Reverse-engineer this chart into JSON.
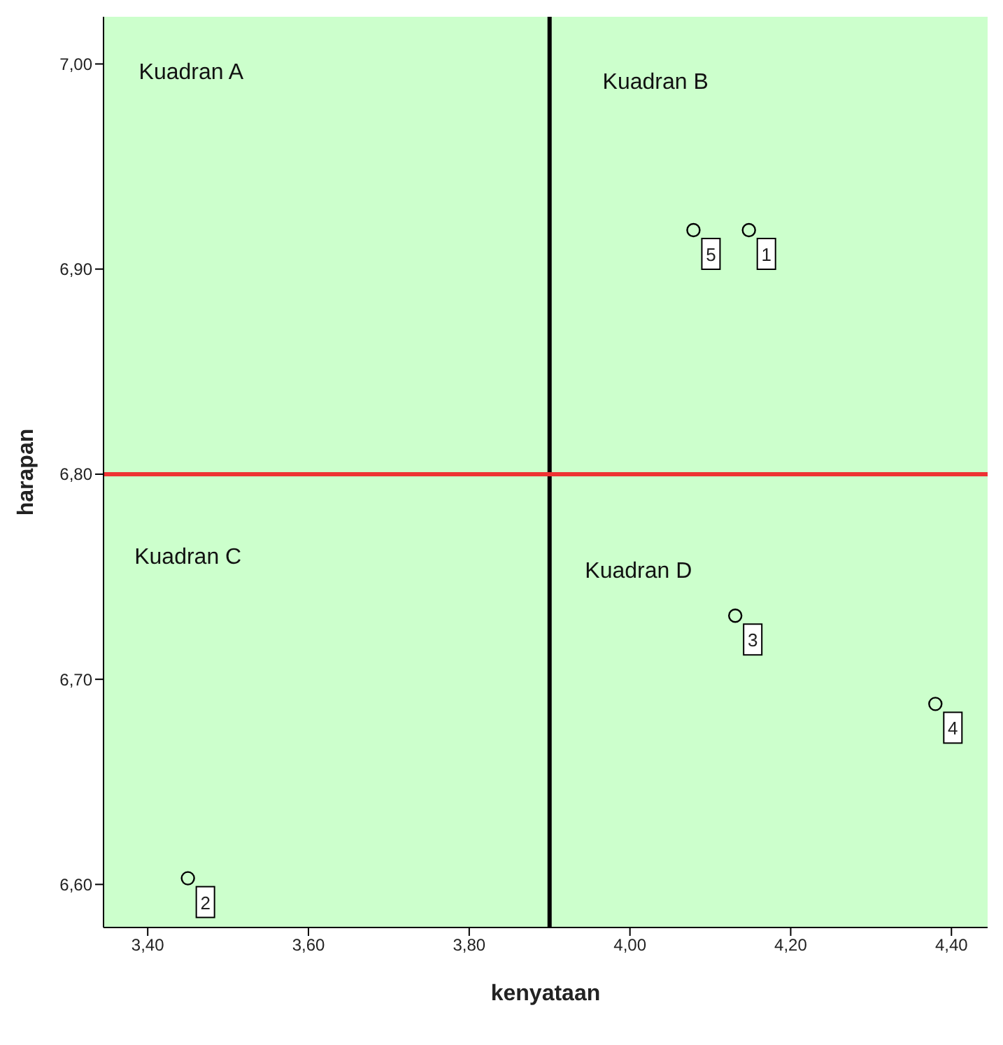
{
  "chart_data": {
    "type": "scatter",
    "xlabel": "kenyataan",
    "ylabel": "harapan",
    "x": [
      4.148,
      3.45,
      4.131,
      4.38,
      4.079
    ],
    "series": [
      {
        "color": "#000000",
        "values": [
          6.919,
          6.603,
          6.731,
          6.688,
          6.919
        ]
      }
    ],
    "marker": "circle",
    "grid": false,
    "legend": false,
    "xlim": [
      3.345,
      4.445
    ],
    "ylim": [
      6.579,
      7.023
    ],
    "xticks": [
      {
        "value": 3.4,
        "label": "3,40"
      },
      {
        "value": 3.6,
        "label": "3,60"
      },
      {
        "value": 3.8,
        "label": "3,80"
      },
      {
        "value": 4.0,
        "label": "4,00"
      },
      {
        "value": 4.2,
        "label": "4,20"
      },
      {
        "value": 4.4,
        "label": "4,40"
      }
    ],
    "yticks": [
      {
        "value": 6.6,
        "label": "6,60"
      },
      {
        "value": 6.7,
        "label": "6,70"
      },
      {
        "value": 6.8,
        "label": "6,80"
      },
      {
        "value": 6.9,
        "label": "6,90"
      },
      {
        "value": 7.0,
        "label": "7,00"
      }
    ],
    "ref_lines": [
      {
        "axis": "x",
        "value": 3.9,
        "color": "#000000"
      },
      {
        "axis": "y",
        "value": 6.8,
        "color": "#ee3333"
      }
    ],
    "annotations": [
      "Kuadran A",
      "Kuadran B",
      "Kuadran C",
      "Kuadran D",
      {
        "text": "1",
        "x": 4.148,
        "y": 6.919
      },
      {
        "text": "2",
        "x": 3.45,
        "y": 6.603
      },
      {
        "text": "3",
        "x": 4.131,
        "y": 6.731
      },
      {
        "text": "4",
        "x": 4.38,
        "y": 6.688
      },
      {
        "text": "5",
        "x": 4.079,
        "y": 6.919
      }
    ]
  }
}
